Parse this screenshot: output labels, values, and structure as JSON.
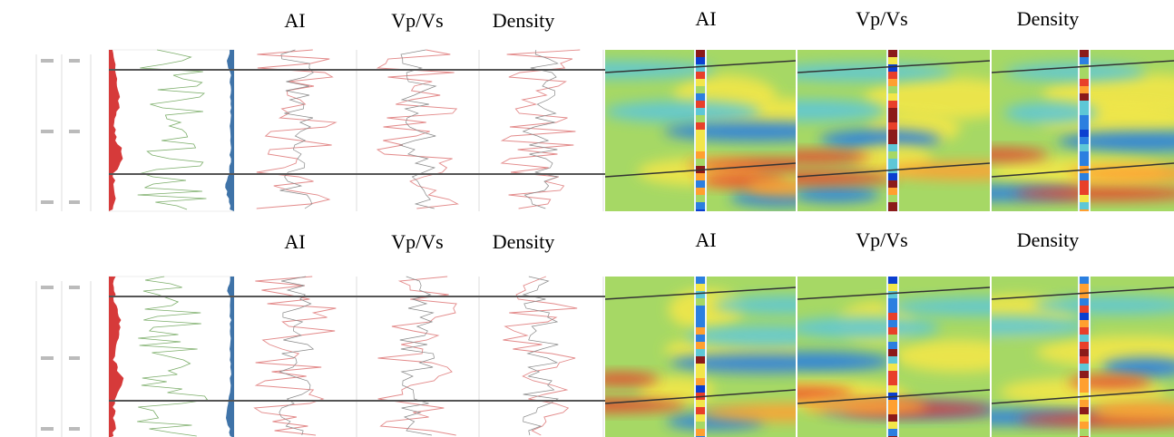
{
  "rows": [
    {
      "log_labels": [
        "AI",
        "Vp/Vs",
        "Density"
      ],
      "section_labels": [
        "AI",
        "Vp/Vs",
        "Density"
      ]
    },
    {
      "log_labels": [
        "AI",
        "Vp/Vs",
        "Density"
      ],
      "section_labels": [
        "AI",
        "Vp/Vs",
        "Density"
      ]
    }
  ]
}
